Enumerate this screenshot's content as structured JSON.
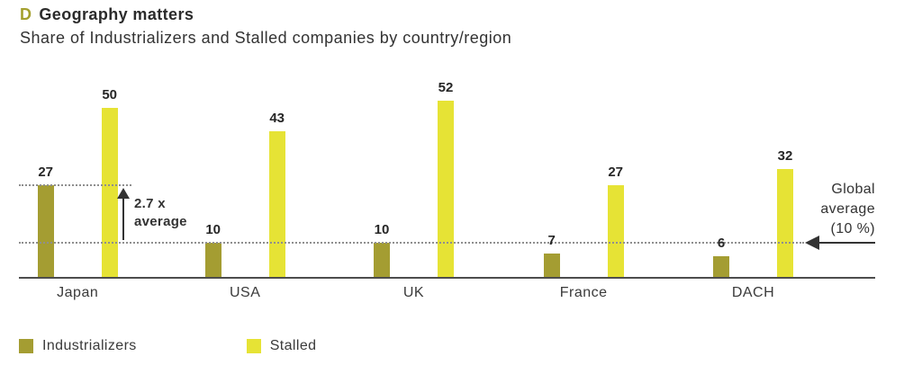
{
  "header": {
    "tag": "D",
    "title": "Geography matters",
    "subtitle": "Share of Industrializers and Stalled companies by country/region"
  },
  "chart_data": {
    "type": "bar",
    "categories": [
      "Japan",
      "USA",
      "UK",
      "France",
      "DACH"
    ],
    "series": [
      {
        "name": "Industrializers",
        "color": "#a49d32",
        "values": [
          27,
          10,
          10,
          7,
          6
        ]
      },
      {
        "name": "Stalled",
        "color": "#e6e335",
        "values": [
          50,
          43,
          52,
          27,
          32
        ]
      }
    ],
    "title": "Geography matters",
    "subtitle": "Share of Industrializers and Stalled companies by country/region",
    "ylabel": "",
    "xlabel": "",
    "ylim": [
      0,
      55
    ],
    "grid": false,
    "legend_position": "bottom-left",
    "data_labels": true,
    "reference_lines": [
      {
        "value": 10,
        "label": "Global average (10 %)",
        "style": "dotted",
        "extent": "full-width"
      },
      {
        "value": 27,
        "label": "2.7 x average",
        "style": "dotted",
        "extent": "left-partial"
      }
    ],
    "annotations": [
      {
        "type": "up-arrow",
        "text": "2.7 x average",
        "from_value": 10,
        "to_value": 27
      },
      {
        "type": "left-arrow",
        "text": "Global average (10 %)",
        "at_value": 10
      }
    ]
  },
  "annotations": {
    "multiplier": {
      "line1": "2.7 x",
      "line2": "average"
    },
    "global_average": {
      "line1": "Global",
      "line2": "average",
      "line3": "(10 %)"
    }
  },
  "legend": {
    "items": [
      {
        "label": "Industrializers",
        "color": "#a49d32"
      },
      {
        "label": "Stalled",
        "color": "#e6e335"
      }
    ]
  },
  "colors": {
    "industrializers": "#a49d32",
    "stalled": "#e6e335",
    "accent_tag": "#a4a02e",
    "text": "#333333",
    "axis": "#4d4d4d",
    "dotted_line": "#8f8f8f"
  }
}
